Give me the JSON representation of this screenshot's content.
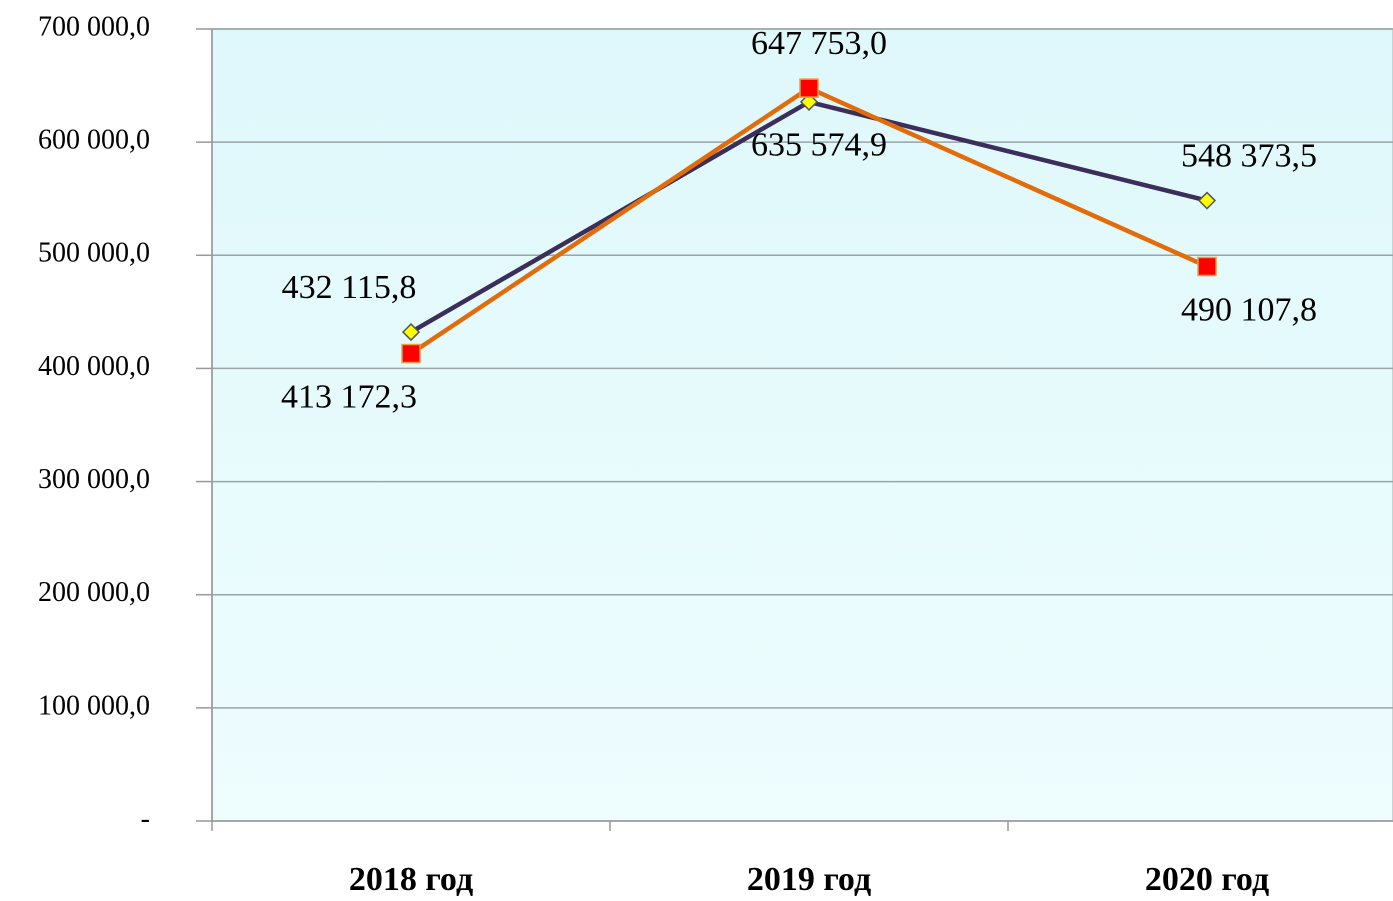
{
  "chart_data": {
    "type": "line",
    "categories": [
      "2018 год",
      "2019 год",
      "2020 год"
    ],
    "series": [
      {
        "color": "#3b2e5a",
        "marker": "diamond",
        "marker_color": "#ffff00",
        "values": [
          432115.8,
          635574.9,
          548373.5
        ],
        "value_labels": [
          "432 115,8",
          "635 574,9",
          "548 373,5"
        ]
      },
      {
        "color": "#e36c0a",
        "marker": "square",
        "marker_color": "#ff0000",
        "values": [
          413172.3,
          647753.0,
          490107.8
        ],
        "value_labels": [
          "413 172,3",
          "647 753,0",
          "490 107,8"
        ]
      }
    ],
    "ylim": [
      0,
      700000
    ],
    "yticks": [
      {
        "value": 0,
        "label": "-"
      },
      {
        "value": 100000,
        "label": "100 000,0"
      },
      {
        "value": 200000,
        "label": "200 000,0"
      },
      {
        "value": 300000,
        "label": "300 000,0"
      },
      {
        "value": 400000,
        "label": "400 000,0"
      },
      {
        "value": 500000,
        "label": "500 000,0"
      },
      {
        "value": 600000,
        "label": "600 000,0"
      },
      {
        "value": 700000,
        "label": "700 000,0"
      }
    ],
    "grid": true
  }
}
